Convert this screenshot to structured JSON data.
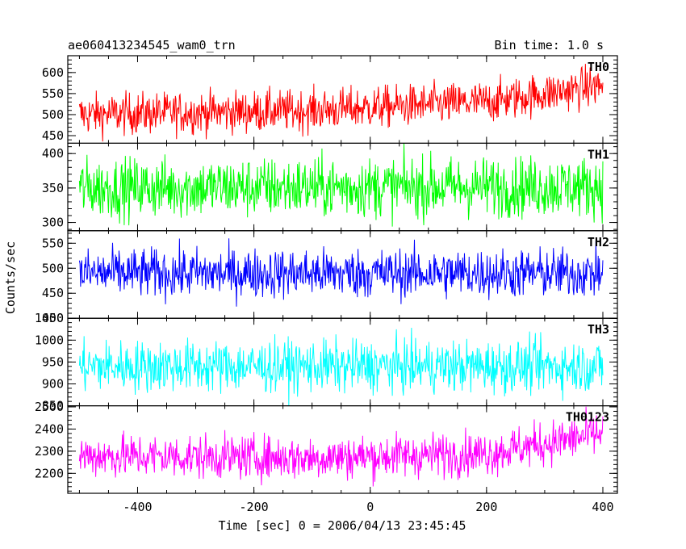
{
  "header": {
    "title": "ae060413234545_wam0_trn",
    "bin_time": "Bin time: 1.0 s"
  },
  "chart_data": {
    "type": "line",
    "xlabel": "Time [sec] 0 = 2006/04/13 23:45:45",
    "ylabel": "Counts/sec",
    "xlim": [
      -520,
      425
    ],
    "x_ticks": [
      -400,
      -200,
      0,
      200,
      400
    ],
    "x_range": [
      -500,
      400
    ],
    "bin_time_s": 1.0,
    "panels": [
      {
        "name": "TH0",
        "color": "#ff0000",
        "ylim": [
          432,
          640
        ],
        "y_ticks": [
          450,
          500,
          550,
          600
        ],
        "trend": [
          [
            -500,
            500
          ],
          [
            -100,
            510
          ],
          [
            200,
            530
          ],
          [
            400,
            570
          ]
        ],
        "noise": 25
      },
      {
        "name": "TH1",
        "color": "#00ff00",
        "ylim": [
          288,
          415
        ],
        "y_ticks": [
          300,
          350,
          400
        ],
        "trend": [
          [
            -500,
            350
          ],
          [
            400,
            352
          ]
        ],
        "noise": 22
      },
      {
        "name": "TH2",
        "color": "#0000ff",
        "ylim": [
          400,
          575
        ],
        "y_ticks": [
          400,
          450,
          500,
          550
        ],
        "trend": [
          [
            -500,
            490
          ],
          [
            400,
            490
          ]
        ],
        "noise": 25
      },
      {
        "name": "TH3",
        "color": "#00ffff",
        "ylim": [
          850,
          1050
        ],
        "y_ticks": [
          850,
          900,
          950,
          1000,
          1050
        ],
        "trend": [
          [
            -500,
            940
          ],
          [
            400,
            940
          ]
        ],
        "noise": 30
      },
      {
        "name": "TH0123",
        "color": "#ff00ff",
        "ylim": [
          2110,
          2505
        ],
        "y_ticks": [
          2200,
          2300,
          2400,
          2500
        ],
        "trend": [
          [
            -500,
            2280
          ],
          [
            -100,
            2270
          ],
          [
            200,
            2290
          ],
          [
            400,
            2380
          ]
        ],
        "noise": 50
      }
    ]
  }
}
